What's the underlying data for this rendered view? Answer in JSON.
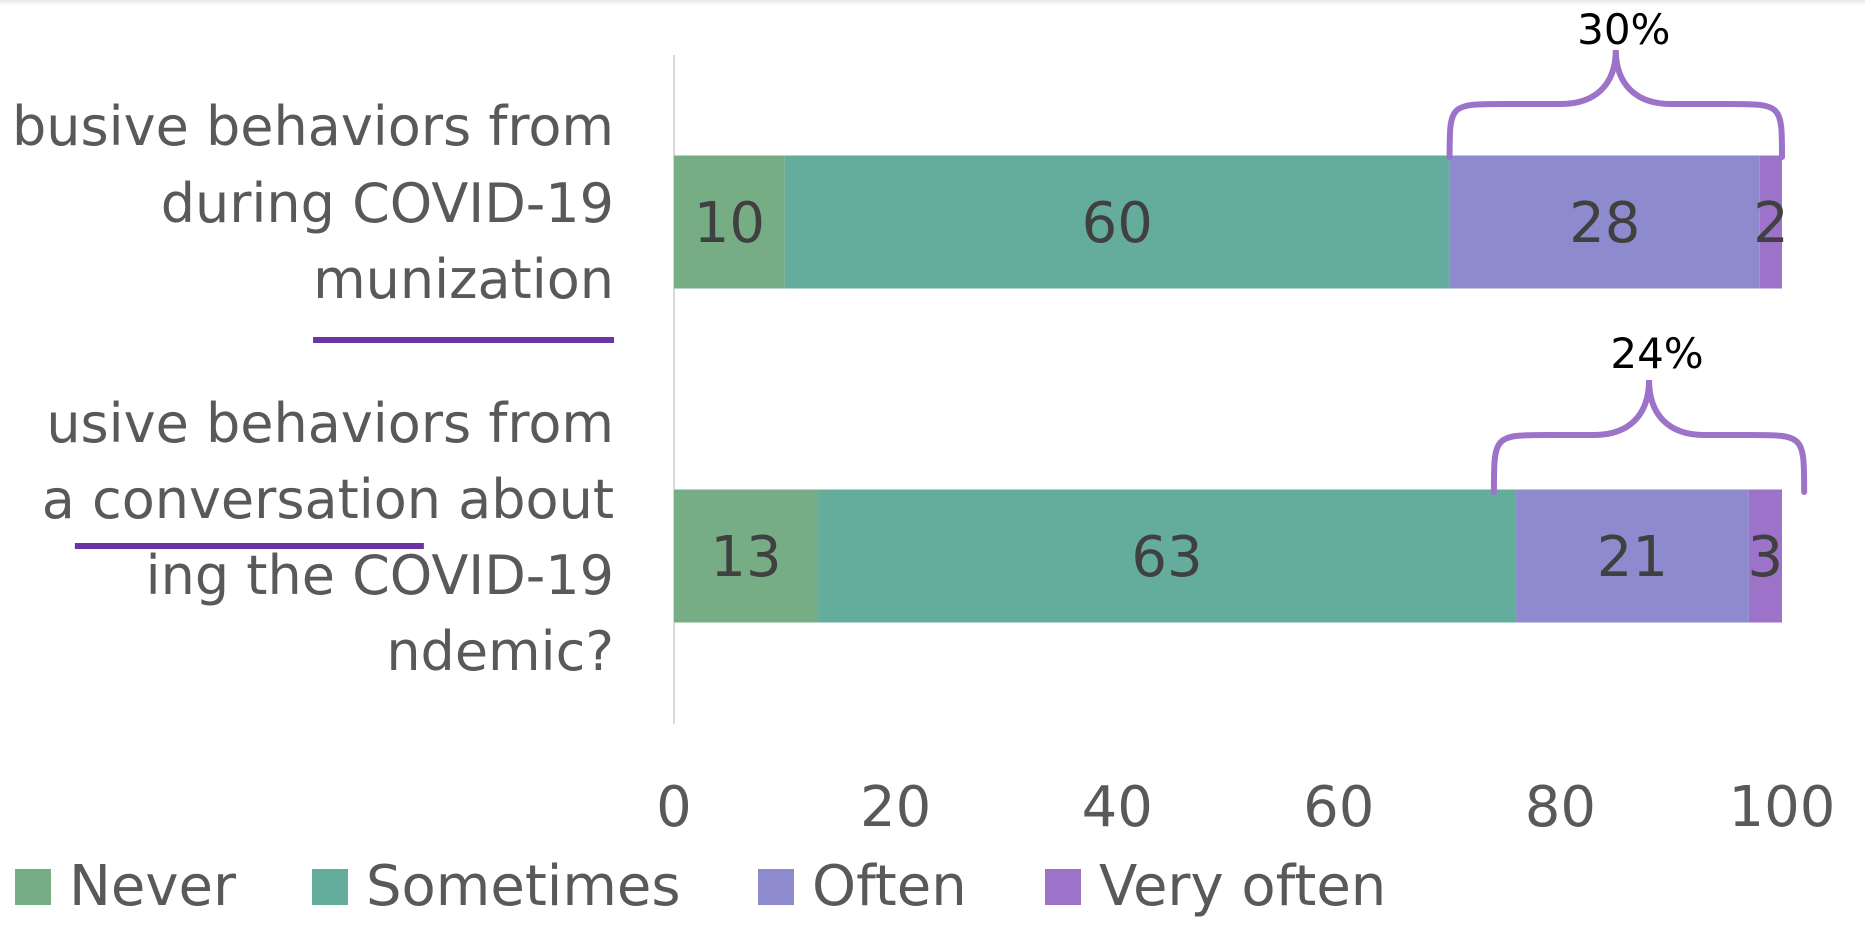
{
  "chart_data": {
    "type": "bar",
    "orientation": "horizontal",
    "stacked": true,
    "xlim": [
      0,
      100
    ],
    "xticks": [
      0,
      20,
      40,
      60,
      80,
      100
    ],
    "grid": false,
    "legend_position": "bottom",
    "categories": [
      {
        "lines": [
          "busive behaviors from",
          "during COVID-19",
          "munization"
        ],
        "underlined": "munization"
      },
      {
        "lines": [
          "usive behaviors from",
          "a conversation about",
          "ing the COVID-19",
          "ndemic?"
        ],
        "underlined": "conversation"
      }
    ],
    "series": [
      {
        "name": "Never",
        "color": "#76ad85",
        "values": [
          10,
          13
        ]
      },
      {
        "name": "Sometimes",
        "color": "#64ad9d",
        "values": [
          60,
          63
        ]
      },
      {
        "name": "Often",
        "color": "#8d8bce",
        "values": [
          28,
          21
        ]
      },
      {
        "name": "Very often",
        "color": "#9c73c9",
        "values": [
          2,
          3
        ]
      }
    ],
    "annotations": [
      {
        "label": "30%",
        "category_index": 0,
        "from": 70,
        "to": 100,
        "color": "#9c73c9"
      },
      {
        "label": "24%",
        "category_index": 1,
        "from": 74,
        "to": 102,
        "color": "#9c73c9"
      }
    ],
    "underline_color": "#6a35a3"
  }
}
